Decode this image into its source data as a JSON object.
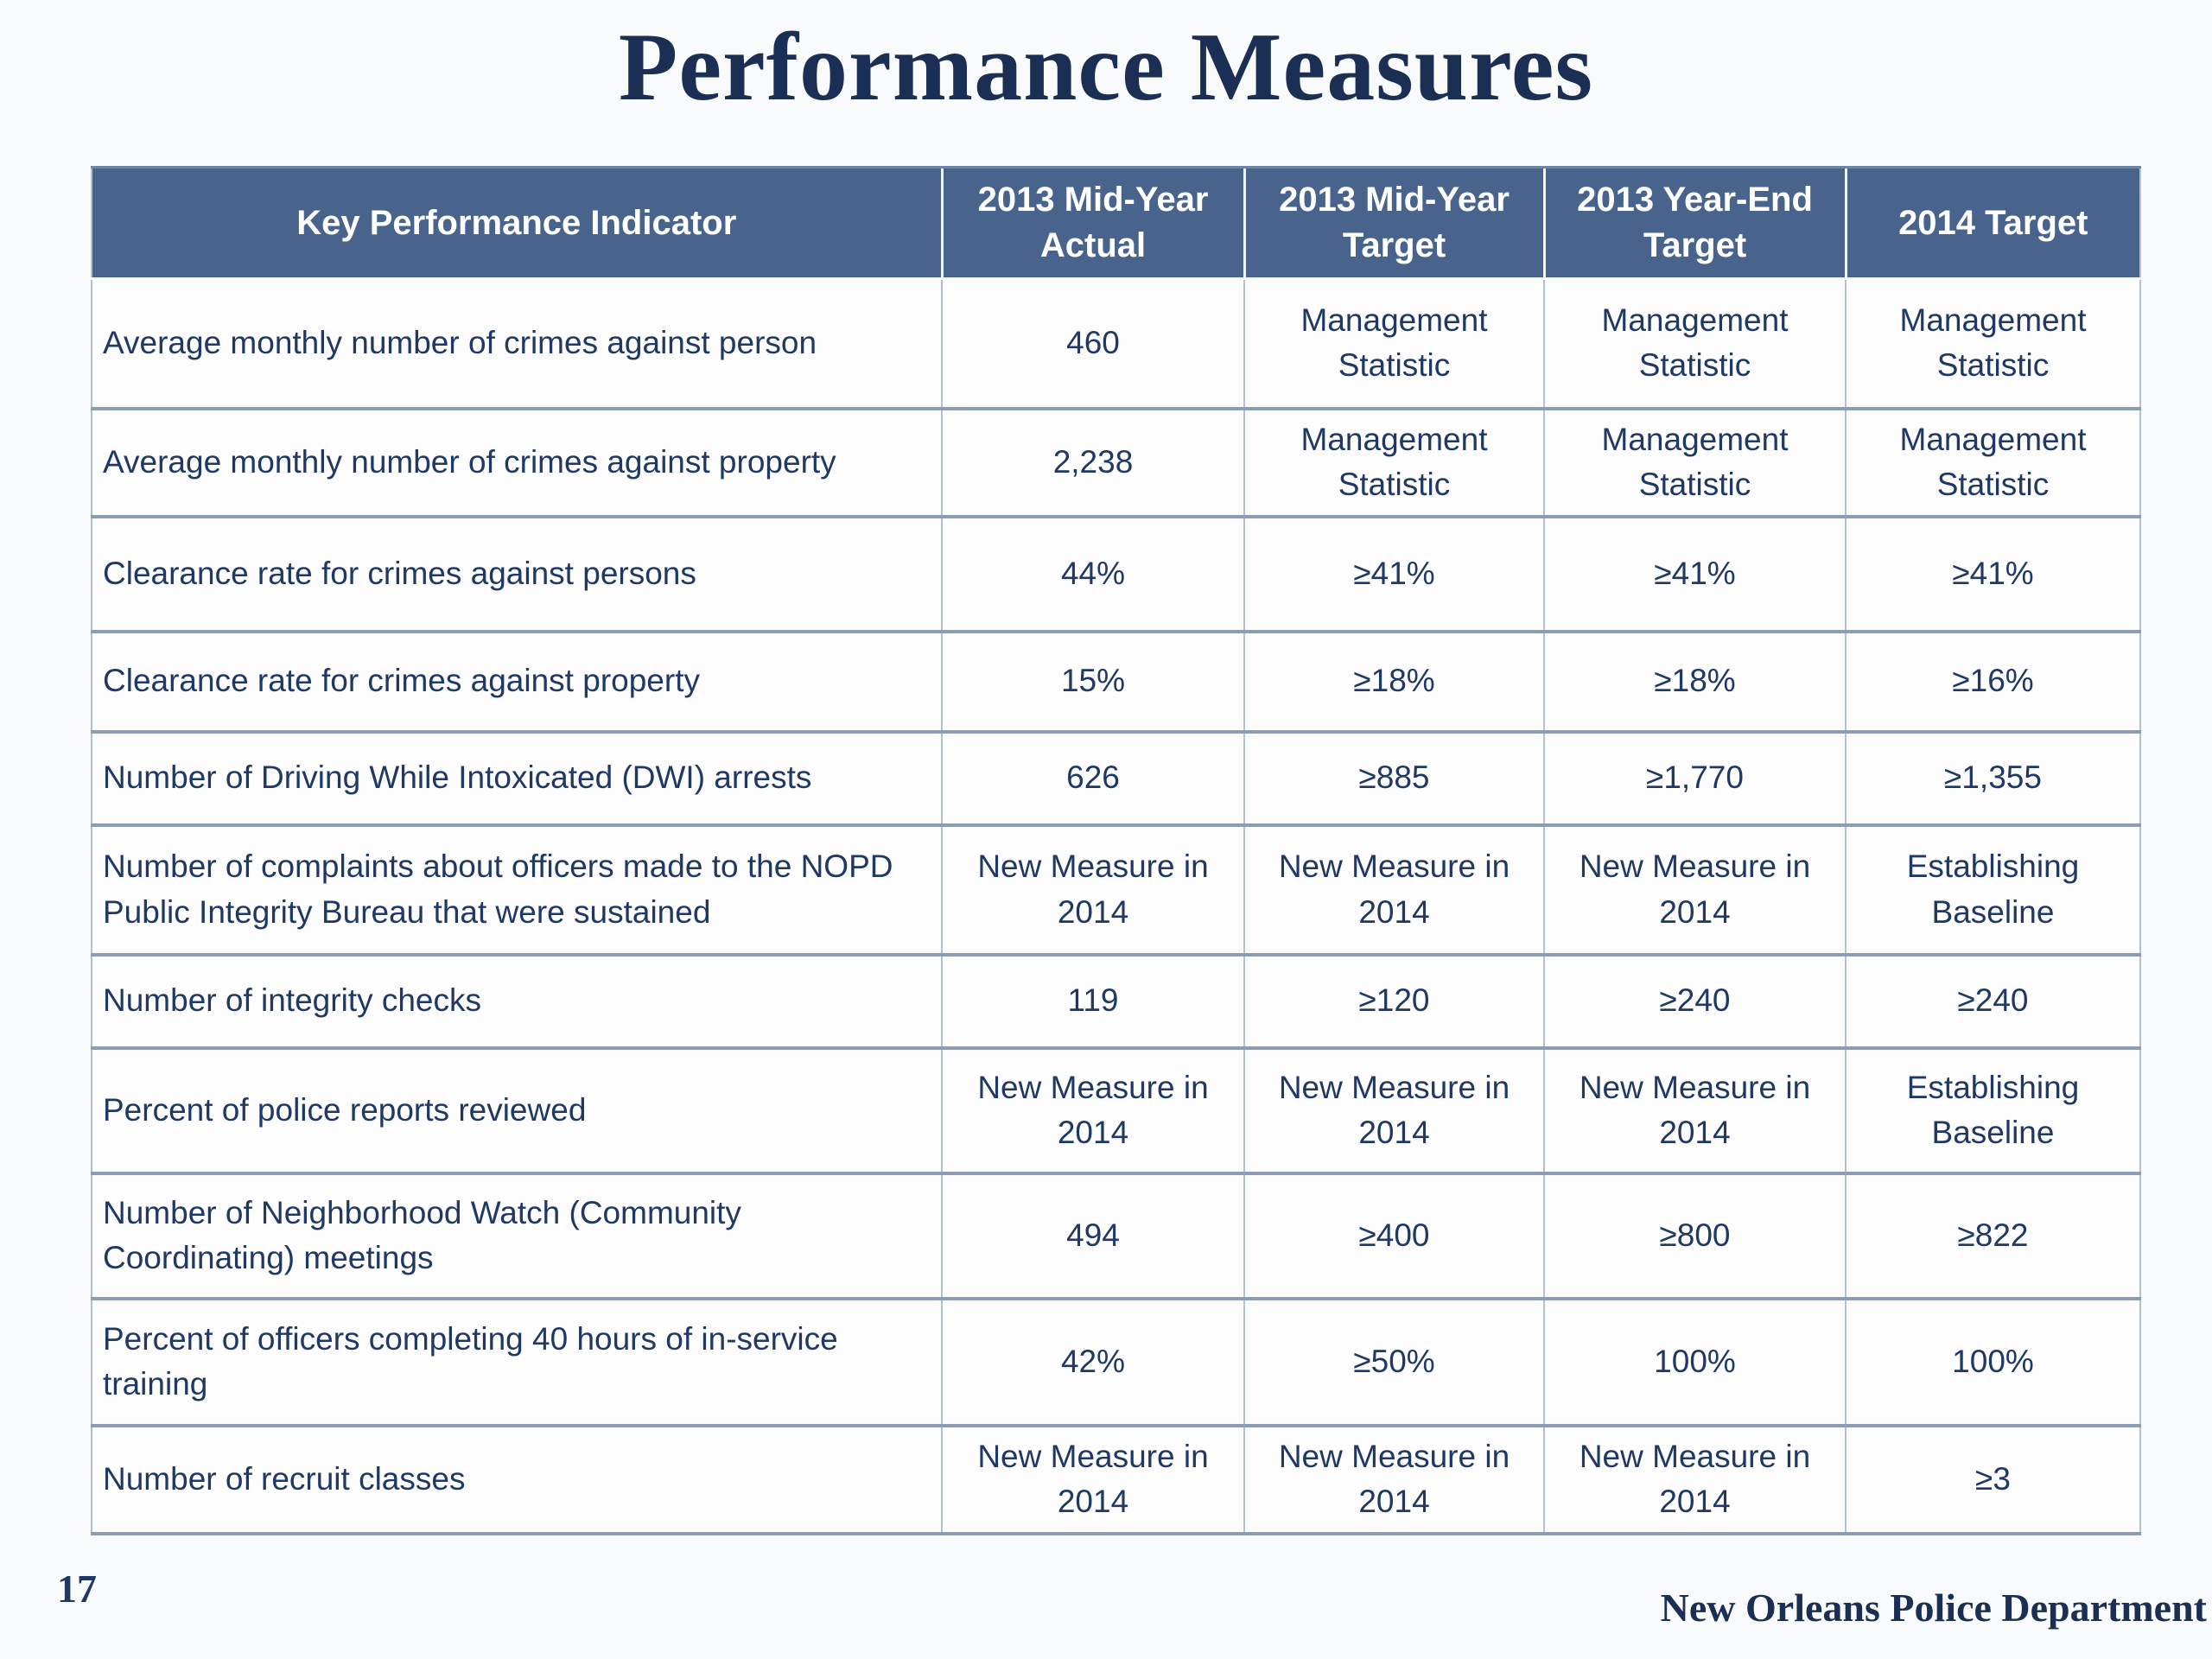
{
  "slide": {
    "title": "Performance Measures",
    "page_number": "17",
    "footer": "New Orleans Police Department"
  },
  "table": {
    "headers": [
      "Key Performance Indicator",
      "2013 Mid-Year Actual",
      "2013 Mid-Year Target",
      "2013 Year-End Target",
      "2014 Target"
    ],
    "rows": [
      {
        "label": "Average monthly number of crimes against person",
        "values": [
          "460",
          "Management Statistic",
          "Management Statistic",
          "Management Statistic"
        ]
      },
      {
        "label": "Average monthly number of crimes against property",
        "values": [
          "2,238",
          "Management Statistic",
          "Management Statistic",
          "Management Statistic"
        ]
      },
      {
        "label": "Clearance rate for crimes against persons",
        "values": [
          "44%",
          "≥41%",
          "≥41%",
          "≥41%"
        ]
      },
      {
        "label": "Clearance rate for crimes against property",
        "values": [
          "15%",
          "≥18%",
          "≥18%",
          "≥16%"
        ]
      },
      {
        "label": "Number of Driving While Intoxicated (DWI) arrests",
        "values": [
          "626",
          "≥885",
          "≥1,770",
          "≥1,355"
        ]
      },
      {
        "label": "Number of complaints about officers made to the NOPD Public Integrity Bureau that were sustained",
        "values": [
          "New Measure in 2014",
          "New Measure in 2014",
          "New Measure in 2014",
          "Establishing Baseline"
        ]
      },
      {
        "label": "Number of integrity checks",
        "values": [
          "119",
          "≥120",
          "≥240",
          "≥240"
        ]
      },
      {
        "label": "Percent of police reports reviewed",
        "values": [
          "New Measure in 2014",
          "New Measure in 2014",
          "New Measure in 2014",
          "Establishing Baseline"
        ]
      },
      {
        "label": "Number of Neighborhood Watch (Community Coordinating) meetings",
        "values": [
          "494",
          "≥400",
          "≥800",
          "≥822"
        ]
      },
      {
        "label": "Percent of officers completing 40 hours of in-service training",
        "values": [
          "42%",
          "≥50%",
          "100%",
          "100%"
        ]
      },
      {
        "label": "Number of recruit classes",
        "values": [
          "New Measure in 2014",
          "New Measure in 2014",
          "New Measure in 2014",
          "≥3"
        ]
      }
    ]
  },
  "colors": {
    "page_bg": "#F9FAFB",
    "cell_bg": "#FDFDFE",
    "header_bg": "#48648C",
    "header_text": "#FFFFFF",
    "body_text": "#1F3864",
    "title_text": "#1B2F55",
    "row_divider": "#8B9DB6",
    "column_divider": "#B3C0D2"
  }
}
